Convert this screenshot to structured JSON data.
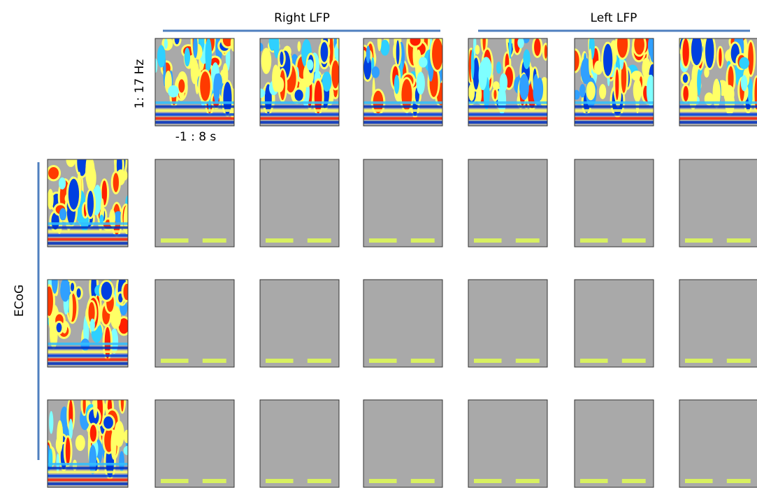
{
  "header": {
    "right_label": "Right LFP",
    "left_label": "Left LFP"
  },
  "axes": {
    "y_label": "1: 17 Hz",
    "x_label": "-1 : 8 s"
  },
  "row_label": "ECoG"
}
